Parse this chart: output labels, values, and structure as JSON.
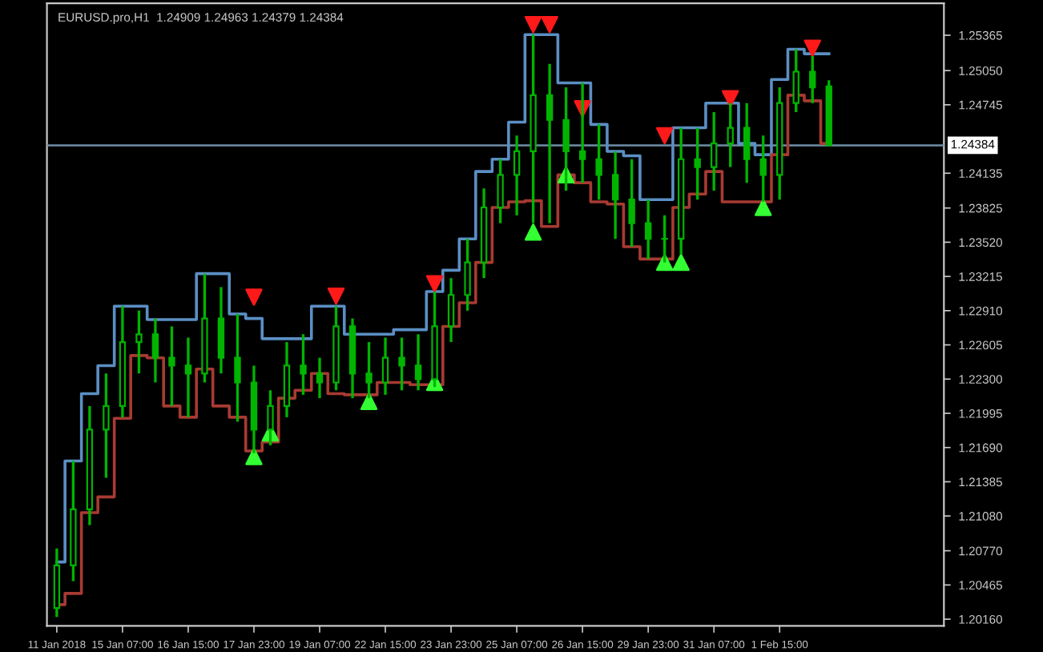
{
  "chart_data": {
    "type": "candlestick",
    "title": "EURUSD.pro,H1  1.24909 1.24963 1.24379 1.24384",
    "categories": [
      "11 Jan 2018",
      null,
      null,
      null,
      "15 Jan 07:00",
      null,
      null,
      null,
      "16 Jan 15:00",
      null,
      null,
      null,
      "17 Jan 23:00",
      null,
      null,
      null,
      "19 Jan 07:00",
      null,
      null,
      null,
      "22 Jan 15:00",
      null,
      null,
      null,
      "23 Jan 23:00",
      null,
      null,
      null,
      "25 Jan 07:00",
      null,
      null,
      null,
      "26 Jan 15:00",
      null,
      null,
      null,
      "29 Jan 23:00",
      null,
      null,
      null,
      "31 Jan 07:00",
      null,
      null,
      null,
      "1 Feb 15:00",
      null,
      null,
      null
    ],
    "color": "#00b400",
    "ohlc": [
      [
        1.2026,
        1.2079,
        1.2018,
        1.2064
      ],
      [
        1.2064,
        1.2157,
        1.205,
        1.2114
      ],
      [
        1.2114,
        1.2206,
        1.21,
        1.2185
      ],
      [
        1.2185,
        1.2235,
        1.2142,
        1.2206
      ],
      [
        1.2206,
        1.2295,
        1.2196,
        1.2263
      ],
      [
        1.2263,
        1.2291,
        1.2235,
        1.227
      ],
      [
        1.227,
        1.2284,
        1.2227,
        1.2249
      ],
      [
        1.2249,
        1.2277,
        1.2206,
        1.2242
      ],
      [
        1.2242,
        1.2267,
        1.2196,
        1.2235
      ],
      [
        1.2235,
        1.2324,
        1.2227,
        1.2284
      ],
      [
        1.2284,
        1.2312,
        1.2235,
        1.2249
      ],
      [
        1.2249,
        1.2288,
        1.2192,
        1.2227
      ],
      [
        1.2227,
        1.2242,
        1.2164,
        1.2185
      ],
      [
        1.2185,
        1.222,
        1.2171,
        1.2206
      ],
      [
        1.2206,
        1.2263,
        1.2196,
        1.2242
      ],
      [
        1.2242,
        1.227,
        1.2216,
        1.2235
      ],
      [
        1.2235,
        1.2249,
        1.2213,
        1.2227
      ],
      [
        1.2227,
        1.2295,
        1.222,
        1.2277
      ],
      [
        1.2277,
        1.2284,
        1.2213,
        1.2235
      ],
      [
        1.2235,
        1.2263,
        1.2213,
        1.2227
      ],
      [
        1.2227,
        1.2267,
        1.2216,
        1.2249
      ],
      [
        1.2249,
        1.2267,
        1.222,
        1.2242
      ],
      [
        1.2242,
        1.227,
        1.222,
        1.223
      ],
      [
        1.223,
        1.2308,
        1.2223,
        1.2277
      ],
      [
        1.2277,
        1.232,
        1.2263,
        1.2305
      ],
      [
        1.2305,
        1.2355,
        1.2291,
        1.2334
      ],
      [
        1.2334,
        1.24,
        1.232,
        1.2383
      ],
      [
        1.2383,
        1.2426,
        1.2369,
        1.2412
      ],
      [
        1.2412,
        1.2447,
        1.2376,
        1.2433
      ],
      [
        1.2433,
        1.2537,
        1.2369,
        1.2483
      ],
      [
        1.2483,
        1.2511,
        1.2369,
        1.2461
      ],
      [
        1.2461,
        1.249,
        1.2398,
        1.2433
      ],
      [
        1.2433,
        1.2494,
        1.2405,
        1.2426
      ],
      [
        1.2426,
        1.2457,
        1.239,
        1.2412
      ],
      [
        1.2412,
        1.2433,
        1.2355,
        1.239
      ],
      [
        1.239,
        1.2426,
        1.2348,
        1.2369
      ],
      [
        1.2369,
        1.239,
        1.2337,
        1.2355
      ],
      [
        1.2355,
        1.2376,
        1.2334,
        1.2355
      ],
      [
        1.2355,
        1.2454,
        1.2341,
        1.2426
      ],
      [
        1.2426,
        1.2454,
        1.239,
        1.2419
      ],
      [
        1.2419,
        1.2468,
        1.2398,
        1.244
      ],
      [
        1.244,
        1.2476,
        1.2419,
        1.2454
      ],
      [
        1.2454,
        1.2476,
        1.2405,
        1.2426
      ],
      [
        1.2426,
        1.2447,
        1.2388,
        1.2412
      ],
      [
        1.2412,
        1.249,
        1.239,
        1.2476
      ],
      [
        1.2476,
        1.2524,
        1.2468,
        1.2504
      ],
      [
        1.2504,
        1.2518,
        1.2476,
        1.249
      ],
      [
        1.24909,
        1.24963,
        1.24379,
        1.24384
      ]
    ],
    "series": [
      {
        "type": "step",
        "color": "#5b8fc4",
        "values": [
          1.2067,
          1.2157,
          1.2217,
          1.2242,
          1.2295,
          1.2295,
          1.2283,
          1.2283,
          1.2283,
          1.2324,
          1.2324,
          1.2288,
          1.2284,
          1.2266,
          1.2266,
          1.2266,
          1.2295,
          1.2295,
          1.227,
          1.227,
          1.227,
          1.2274,
          1.2274,
          1.2308,
          1.2327,
          1.2355,
          1.2415,
          1.2426,
          1.2459,
          1.2537,
          1.2537,
          1.2494,
          1.2494,
          1.2457,
          1.2433,
          1.2429,
          1.239,
          1.239,
          1.2454,
          1.2454,
          1.2476,
          1.2476,
          1.244,
          1.243,
          1.2497,
          1.2524,
          1.252,
          1.252
        ]
      },
      {
        "type": "step",
        "color": "#a83a32",
        "values": [
          1.2029,
          1.2039,
          1.2111,
          1.2125,
          1.2195,
          1.2251,
          1.2249,
          1.2206,
          1.2196,
          1.2239,
          1.2206,
          1.2196,
          1.2166,
          1.2174,
          1.2213,
          1.222,
          1.2235,
          1.2217,
          1.2216,
          1.2216,
          1.2227,
          1.2227,
          1.2225,
          1.2225,
          1.2277,
          1.2298,
          1.2334,
          1.2383,
          1.2388,
          1.2389,
          1.2366,
          1.2412,
          1.2405,
          1.2388,
          1.2386,
          1.2348,
          1.2337,
          1.2337,
          1.2383,
          1.2395,
          1.2415,
          1.2388,
          1.2388,
          1.2388,
          1.243,
          1.2483,
          1.2478,
          1.244
        ]
      },
      {
        "type": "scatter",
        "marker": "triangle",
        "color": "#ff1a1a",
        "values": [
          null,
          null,
          null,
          null,
          null,
          null,
          null,
          null,
          null,
          null,
          null,
          null,
          1.2303,
          null,
          null,
          null,
          null,
          1.2304,
          null,
          null,
          null,
          null,
          null,
          1.2315,
          null,
          null,
          null,
          null,
          null,
          1.2546,
          1.2546,
          null,
          1.2471,
          null,
          null,
          null,
          null,
          1.2447,
          null,
          null,
          null,
          1.248,
          null,
          null,
          null,
          null,
          1.2525,
          null
        ]
      },
      {
        "type": "scatter",
        "marker": "triangle",
        "color": "#33ff33",
        "values": [
          null,
          null,
          null,
          null,
          null,
          null,
          null,
          null,
          null,
          null,
          null,
          null,
          1.2161,
          1.2182,
          null,
          null,
          null,
          null,
          null,
          1.221,
          null,
          null,
          null,
          1.2227,
          null,
          null,
          null,
          null,
          null,
          1.2361,
          null,
          1.2412,
          null,
          null,
          null,
          null,
          null,
          1.2334,
          1.2334,
          null,
          null,
          null,
          null,
          1.2383,
          null,
          null,
          null,
          null
        ]
      }
    ],
    "ylim": [
      1.201,
      1.2565
    ],
    "yticks": [
      1.25365,
      {
        "value": 1.2505,
        "label": "1.25050"
      },
      1.24745,
      1.24135,
      1.23825,
      {
        "value": 1.2352,
        "label": "1.23520"
      },
      1.23215,
      {
        "value": 1.2291,
        "label": "1.22910"
      },
      1.22605,
      {
        "value": 1.223,
        "label": "1.22300"
      },
      1.21995,
      {
        "value": 1.2169,
        "label": "1.21690"
      },
      1.21385,
      {
        "value": 1.2108,
        "label": "1.21080"
      },
      {
        "value": 1.2077,
        "label": "1.20770"
      },
      1.20465,
      {
        "value": 1.2016,
        "label": "1.20160"
      }
    ],
    "ref_lines": [
      {
        "axis": "y",
        "value": 1.24384,
        "label": "1.24384",
        "color": "#6f8fa8"
      }
    ]
  }
}
